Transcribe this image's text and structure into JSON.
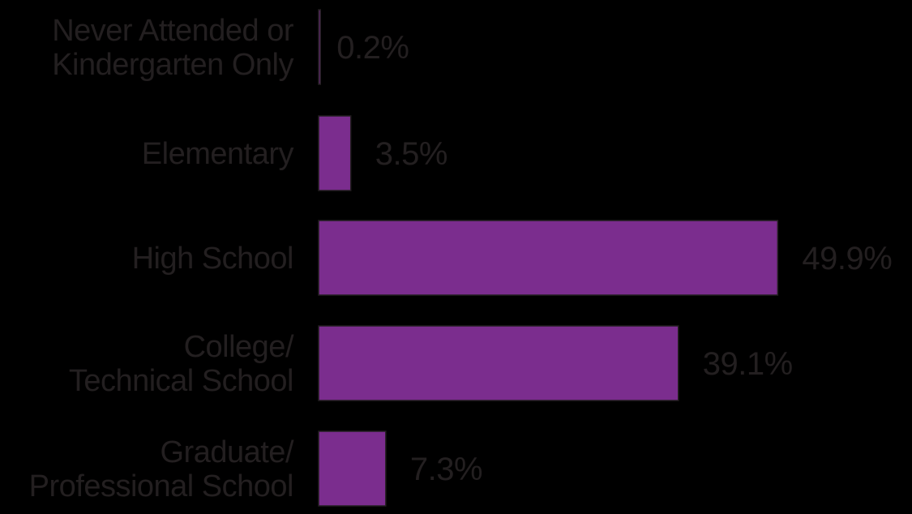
{
  "chart_data": {
    "type": "bar",
    "orientation": "horizontal",
    "categories": [
      [
        "Never Attended or",
        "Kindergarten Only"
      ],
      [
        "Elementary"
      ],
      [
        "High School"
      ],
      [
        "College/",
        "Technical School"
      ],
      [
        "Graduate/",
        "Professional School"
      ]
    ],
    "values": [
      0.2,
      3.5,
      49.9,
      39.1,
      7.3
    ],
    "value_labels": [
      "0.2%",
      "3.5%",
      "49.9%",
      "39.1%",
      "7.3%"
    ],
    "unit": "%",
    "title": "",
    "xlabel": "",
    "ylabel": "",
    "grid": false,
    "legend": "none",
    "colors": {
      "bar": "#7b2d8e",
      "text": "#231f20",
      "background": "#000000"
    }
  }
}
